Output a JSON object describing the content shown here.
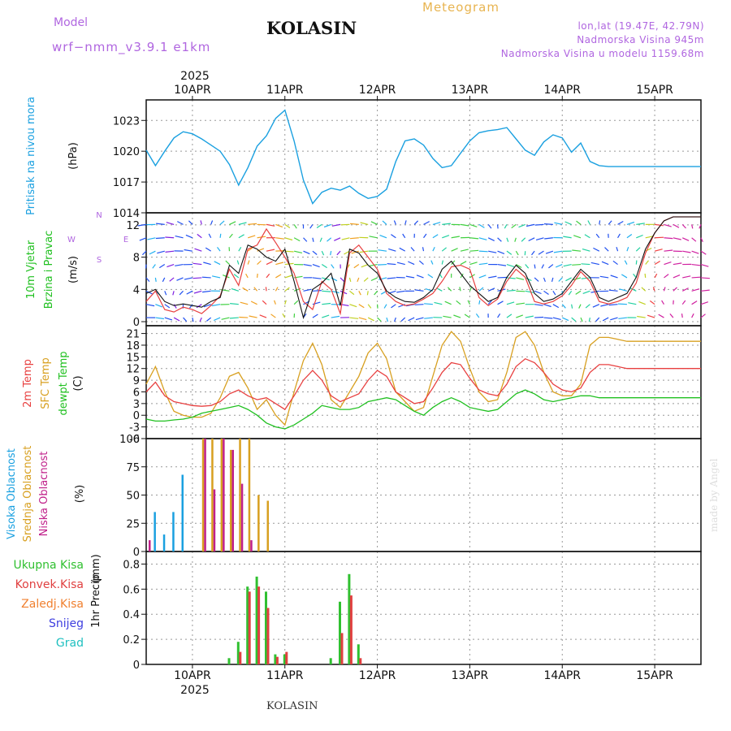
{
  "header": {
    "title": "KOLASIN",
    "meteogram_label": "Meteogram",
    "model_label": "Model",
    "model_name": "wrf−nmm_v3.9.1  e1km",
    "lonlat": "lon,lat (19.47E, 42.79N)",
    "elevation": "Nadmorska Visina 945m",
    "model_elevation": "Nadmorska Visina u modelu 1159.68m",
    "year": "2025",
    "bottom_name": "KOLASIN",
    "credit": "made by Angel"
  },
  "colors": {
    "pressure": "#1aa0e0",
    "temp2m": "#e84040",
    "sfc_temp": "#d8a020",
    "dewpt": "#20c020",
    "wind_speed": "#e84040",
    "gust": "#111111",
    "cloud_high": "#1aa0e0",
    "cloud_mid": "#d8a020",
    "cloud_low": "#c0208a",
    "precip_total": "#30c030",
    "precip_conv": "#e04040",
    "precip_frz": "#f08030",
    "snow": "#4040e0",
    "grad": "#20c0c0"
  },
  "chart_data": [
    {
      "type": "line",
      "name": "pressure",
      "ylabel": "Pritisak na nivou mora",
      "unit": "(hPa)",
      "ylim": [
        1014,
        1025
      ],
      "yticks": [
        1014,
        1017,
        1020,
        1023
      ],
      "x_start_day": 9.5,
      "x_end_day": 15.5,
      "day_labels": [
        "10APR",
        "11APR",
        "12APR",
        "13APR",
        "14APR",
        "15APR"
      ],
      "x": [
        9.5,
        9.6,
        9.7,
        9.8,
        9.9,
        10.0,
        10.1,
        10.2,
        10.3,
        10.4,
        10.5,
        10.6,
        10.7,
        10.8,
        10.9,
        11.0,
        11.1,
        11.2,
        11.3,
        11.4,
        11.5,
        11.6,
        11.7,
        11.8,
        11.9,
        12.0,
        12.1,
        12.2,
        12.3,
        12.4,
        12.5,
        12.6,
        12.7,
        12.8,
        12.9,
        13.0,
        13.1,
        13.2,
        13.3,
        13.4,
        13.5,
        13.6,
        13.7,
        13.8,
        13.9,
        14.0,
        14.1,
        14.2,
        14.3,
        14.4,
        14.5,
        14.6,
        14.7,
        14.8,
        14.9,
        15.0,
        15.1,
        15.2,
        15.3,
        15.4,
        15.5
      ],
      "values": [
        1020.1,
        1018.6,
        1020.0,
        1021.3,
        1021.9,
        1021.7,
        1021.2,
        1020.6,
        1020.0,
        1018.7,
        1016.7,
        1018.4,
        1020.5,
        1021.5,
        1023.2,
        1024.0,
        1021.0,
        1017.2,
        1014.9,
        1016.0,
        1016.4,
        1016.2,
        1016.6,
        1015.9,
        1015.4,
        1015.6,
        1016.3,
        1019.0,
        1021.0,
        1021.2,
        1020.6,
        1019.3,
        1018.4,
        1018.6,
        1019.8,
        1021.0,
        1021.8,
        1022.0,
        1022.1,
        1022.3,
        1021.2,
        1020.1,
        1019.6,
        1020.9,
        1021.6,
        1021.3,
        1019.9,
        1020.8,
        1019.0,
        1018.6,
        1018.5,
        1018.5,
        1018.5,
        1018.5,
        1018.5,
        1018.5,
        1018.5,
        1018.5,
        1018.5,
        1018.5,
        1018.5
      ]
    },
    {
      "type": "line",
      "name": "wind",
      "ylabel": "10m Vjetar",
      "ylabel2": "Brzina i Pravac",
      "unit": "(m/s)",
      "compass": [
        "N",
        "W",
        "E",
        "S"
      ],
      "ylim": [
        -0.5,
        13.5
      ],
      "yticks": [
        0,
        4,
        8,
        12
      ],
      "series": [
        {
          "name": "speed",
          "values": [
            2.5,
            3.8,
            1.5,
            1.2,
            1.8,
            1.5,
            1.0,
            2.0,
            3.2,
            6.5,
            4.5,
            9.0,
            9.5,
            11.5,
            9.8,
            8.0,
            6.0,
            2.5,
            1.5,
            5.0,
            4.0,
            1.0,
            8.5,
            9.5,
            8.0,
            6.5,
            3.5,
            2.5,
            2.0,
            2.2,
            2.8,
            3.5,
            5.0,
            6.8,
            7.0,
            6.5,
            3.0,
            2.0,
            2.8,
            5.0,
            6.5,
            5.5,
            2.5,
            2.2,
            2.5,
            3.2,
            4.5,
            6.2,
            5.0,
            2.5,
            2.2,
            2.5,
            3.0,
            4.8,
            8.5,
            11.0,
            12.5,
            13.0,
            13.0,
            13.0,
            13.0
          ]
        },
        {
          "name": "gust",
          "values": [
            3.5,
            4.0,
            2.5,
            2.0,
            2.2,
            2.0,
            1.8,
            2.5,
            3.0,
            7.0,
            6.0,
            9.5,
            9.0,
            8.0,
            7.5,
            9.0,
            5.0,
            0.5,
            4.0,
            4.8,
            6.0,
            2.0,
            9.0,
            8.5,
            7.0,
            6.0,
            3.8,
            3.0,
            2.5,
            2.4,
            3.0,
            4.0,
            6.5,
            7.5,
            6.0,
            4.5,
            3.5,
            2.5,
            3.0,
            5.5,
            7.0,
            6.0,
            3.5,
            2.5,
            2.8,
            3.5,
            5.0,
            6.5,
            5.5,
            3.0,
            2.5,
            3.0,
            3.5,
            5.5,
            9.0,
            11.0,
            12.5,
            13.0,
            13.0,
            13.0,
            13.0
          ]
        }
      ]
    },
    {
      "type": "line",
      "name": "temperature",
      "ylabels": [
        "2m Temp",
        "SFC Temp",
        "dewpt Temp"
      ],
      "unit": "(C)",
      "ylim": [
        -6,
        23
      ],
      "yticks": [
        -6,
        -3,
        0,
        3,
        6,
        9,
        12,
        15,
        18,
        21
      ],
      "series": [
        {
          "name": "2m Temp",
          "values": [
            6.0,
            8.5,
            5.0,
            3.5,
            3.0,
            2.5,
            2.3,
            2.5,
            3.5,
            5.5,
            6.5,
            5.0,
            4.0,
            4.5,
            3.0,
            1.5,
            5.0,
            9.0,
            11.5,
            9.0,
            5.0,
            3.5,
            4.5,
            5.5,
            9.0,
            11.5,
            10.0,
            6.0,
            4.5,
            3.0,
            3.5,
            7.0,
            11.0,
            13.5,
            13.0,
            9.5,
            6.5,
            5.5,
            5.0,
            8.0,
            12.5,
            14.5,
            13.5,
            11.0,
            8.0,
            6.5,
            6.0,
            7.0,
            11.0,
            13.0,
            13.0,
            12.5,
            12.0,
            12.0,
            12.0,
            12.0,
            12.0,
            12.0,
            12.0,
            12.0,
            12.0
          ]
        },
        {
          "name": "SFC Temp",
          "values": [
            8.0,
            12.5,
            6.0,
            1.0,
            0.0,
            -0.5,
            -0.5,
            0.5,
            4.5,
            10.0,
            11.0,
            7.0,
            1.5,
            4.0,
            0.0,
            -2.5,
            6.0,
            14.0,
            18.5,
            13.0,
            4.0,
            2.0,
            6.0,
            10.0,
            16.0,
            18.5,
            14.5,
            6.0,
            3.5,
            1.0,
            2.0,
            10.0,
            18.0,
            21.5,
            19.0,
            12.0,
            6.0,
            3.5,
            4.0,
            11.0,
            20.0,
            21.5,
            18.0,
            11.0,
            6.0,
            5.0,
            5.0,
            8.0,
            18.0,
            20.0,
            20.0,
            19.5,
            19.0,
            19.0,
            19.0,
            19.0,
            19.0,
            19.0,
            19.0,
            19.0,
            19.0
          ]
        },
        {
          "name": "dewpt Temp",
          "values": [
            -1.0,
            -1.5,
            -1.5,
            -1.2,
            -1.0,
            -0.5,
            0.5,
            1.0,
            1.5,
            2.0,
            2.5,
            1.5,
            0.0,
            -2.0,
            -3.0,
            -3.5,
            -2.5,
            -1.0,
            0.5,
            2.5,
            2.0,
            1.5,
            1.5,
            2.0,
            3.5,
            4.0,
            4.5,
            4.0,
            2.5,
            1.0,
            0.0,
            2.0,
            3.5,
            4.5,
            3.5,
            2.0,
            1.5,
            1.0,
            1.5,
            3.5,
            5.5,
            6.5,
            5.5,
            4.0,
            3.5,
            4.0,
            4.5,
            5.0,
            5.0,
            4.5,
            4.5,
            4.5,
            4.5,
            4.5,
            4.5,
            4.5,
            4.5,
            4.5,
            4.5,
            4.5,
            4.5
          ]
        }
      ]
    },
    {
      "type": "bar",
      "name": "clouds",
      "ylabels": [
        "Visoka Oblacnost",
        "Srednja Oblacnost",
        "Niska Oblacnost"
      ],
      "unit": "(%)",
      "ylim": [
        0,
        100
      ],
      "yticks": [
        0,
        25,
        50,
        75,
        100
      ],
      "series": [
        {
          "name": "Visoka Oblacnost",
          "values": [
            0,
            35,
            15,
            35,
            68,
            0,
            0,
            0,
            0,
            0,
            0,
            0,
            0,
            0,
            0,
            0,
            0,
            0,
            0,
            0,
            0,
            0,
            0,
            0,
            0,
            0,
            0,
            0,
            0,
            0,
            0,
            0,
            0,
            0,
            0,
            0,
            0,
            0,
            0,
            0,
            0,
            0,
            0,
            0,
            0,
            0,
            0,
            0,
            0,
            0,
            0,
            0,
            0,
            0,
            0,
            0,
            0,
            0,
            0,
            0,
            0
          ]
        },
        {
          "name": "Srednja Oblacnost",
          "values": [
            0,
            0,
            0,
            0,
            0,
            0,
            100,
            100,
            100,
            90,
            100,
            100,
            50,
            45,
            0,
            0,
            0,
            0,
            0,
            0,
            0,
            0,
            0,
            0,
            0,
            0,
            0,
            0,
            0,
            0,
            0,
            0,
            0,
            0,
            0,
            0,
            0,
            0,
            0,
            0,
            0,
            0,
            0,
            0,
            0,
            0,
            0,
            0,
            0,
            0,
            0,
            0,
            0,
            0,
            0,
            0,
            0,
            0,
            0,
            0,
            0
          ]
        },
        {
          "name": "Niska Oblacnost",
          "values": [
            10,
            0,
            0,
            0,
            0,
            0,
            100,
            55,
            100,
            90,
            60,
            10,
            0,
            0,
            0,
            0,
            0,
            0,
            0,
            0,
            0,
            0,
            0,
            0,
            0,
            0,
            0,
            0,
            0,
            0,
            0,
            0,
            0,
            0,
            0,
            0,
            0,
            0,
            0,
            0,
            0,
            0,
            0,
            0,
            0,
            0,
            0,
            0,
            0,
            0,
            0,
            0,
            0,
            0,
            0,
            0,
            0,
            0,
            0,
            0,
            0
          ]
        }
      ]
    },
    {
      "type": "bar",
      "name": "precipitation",
      "ylabels": [
        "Ukupna Kisa",
        "Konvek.Kisa",
        "Zaledj.Kisa",
        "Snijeg",
        "Grad"
      ],
      "ylabel": "1hr Precip",
      "unit": "(mm)",
      "ylim": [
        0,
        0.9
      ],
      "yticks": [
        0,
        0.2,
        0.4,
        0.6,
        0.8
      ],
      "series": [
        {
          "name": "Ukupna Kisa",
          "values": [
            0,
            0,
            0,
            0,
            0,
            0,
            0,
            0,
            0,
            0.05,
            0.18,
            0.62,
            0.7,
            0.58,
            0.08,
            0.08,
            0,
            0,
            0,
            0,
            0.05,
            0.5,
            0.72,
            0.16,
            0,
            0,
            0,
            0,
            0,
            0,
            0,
            0,
            0,
            0,
            0,
            0,
            0,
            0,
            0,
            0,
            0,
            0,
            0,
            0,
            0,
            0,
            0,
            0,
            0,
            0,
            0,
            0,
            0,
            0,
            0,
            0,
            0,
            0,
            0,
            0,
            0
          ]
        },
        {
          "name": "Konvek.Kisa",
          "values": [
            0,
            0,
            0,
            0,
            0,
            0,
            0,
            0,
            0,
            0,
            0.1,
            0.58,
            0.62,
            0.45,
            0.06,
            0.1,
            0,
            0,
            0,
            0,
            0,
            0.25,
            0.55,
            0.05,
            0,
            0,
            0,
            0,
            0,
            0,
            0,
            0,
            0,
            0,
            0,
            0,
            0,
            0,
            0,
            0,
            0,
            0,
            0,
            0,
            0,
            0,
            0,
            0,
            0,
            0,
            0,
            0,
            0,
            0,
            0,
            0,
            0,
            0,
            0,
            0,
            0
          ]
        }
      ]
    }
  ]
}
